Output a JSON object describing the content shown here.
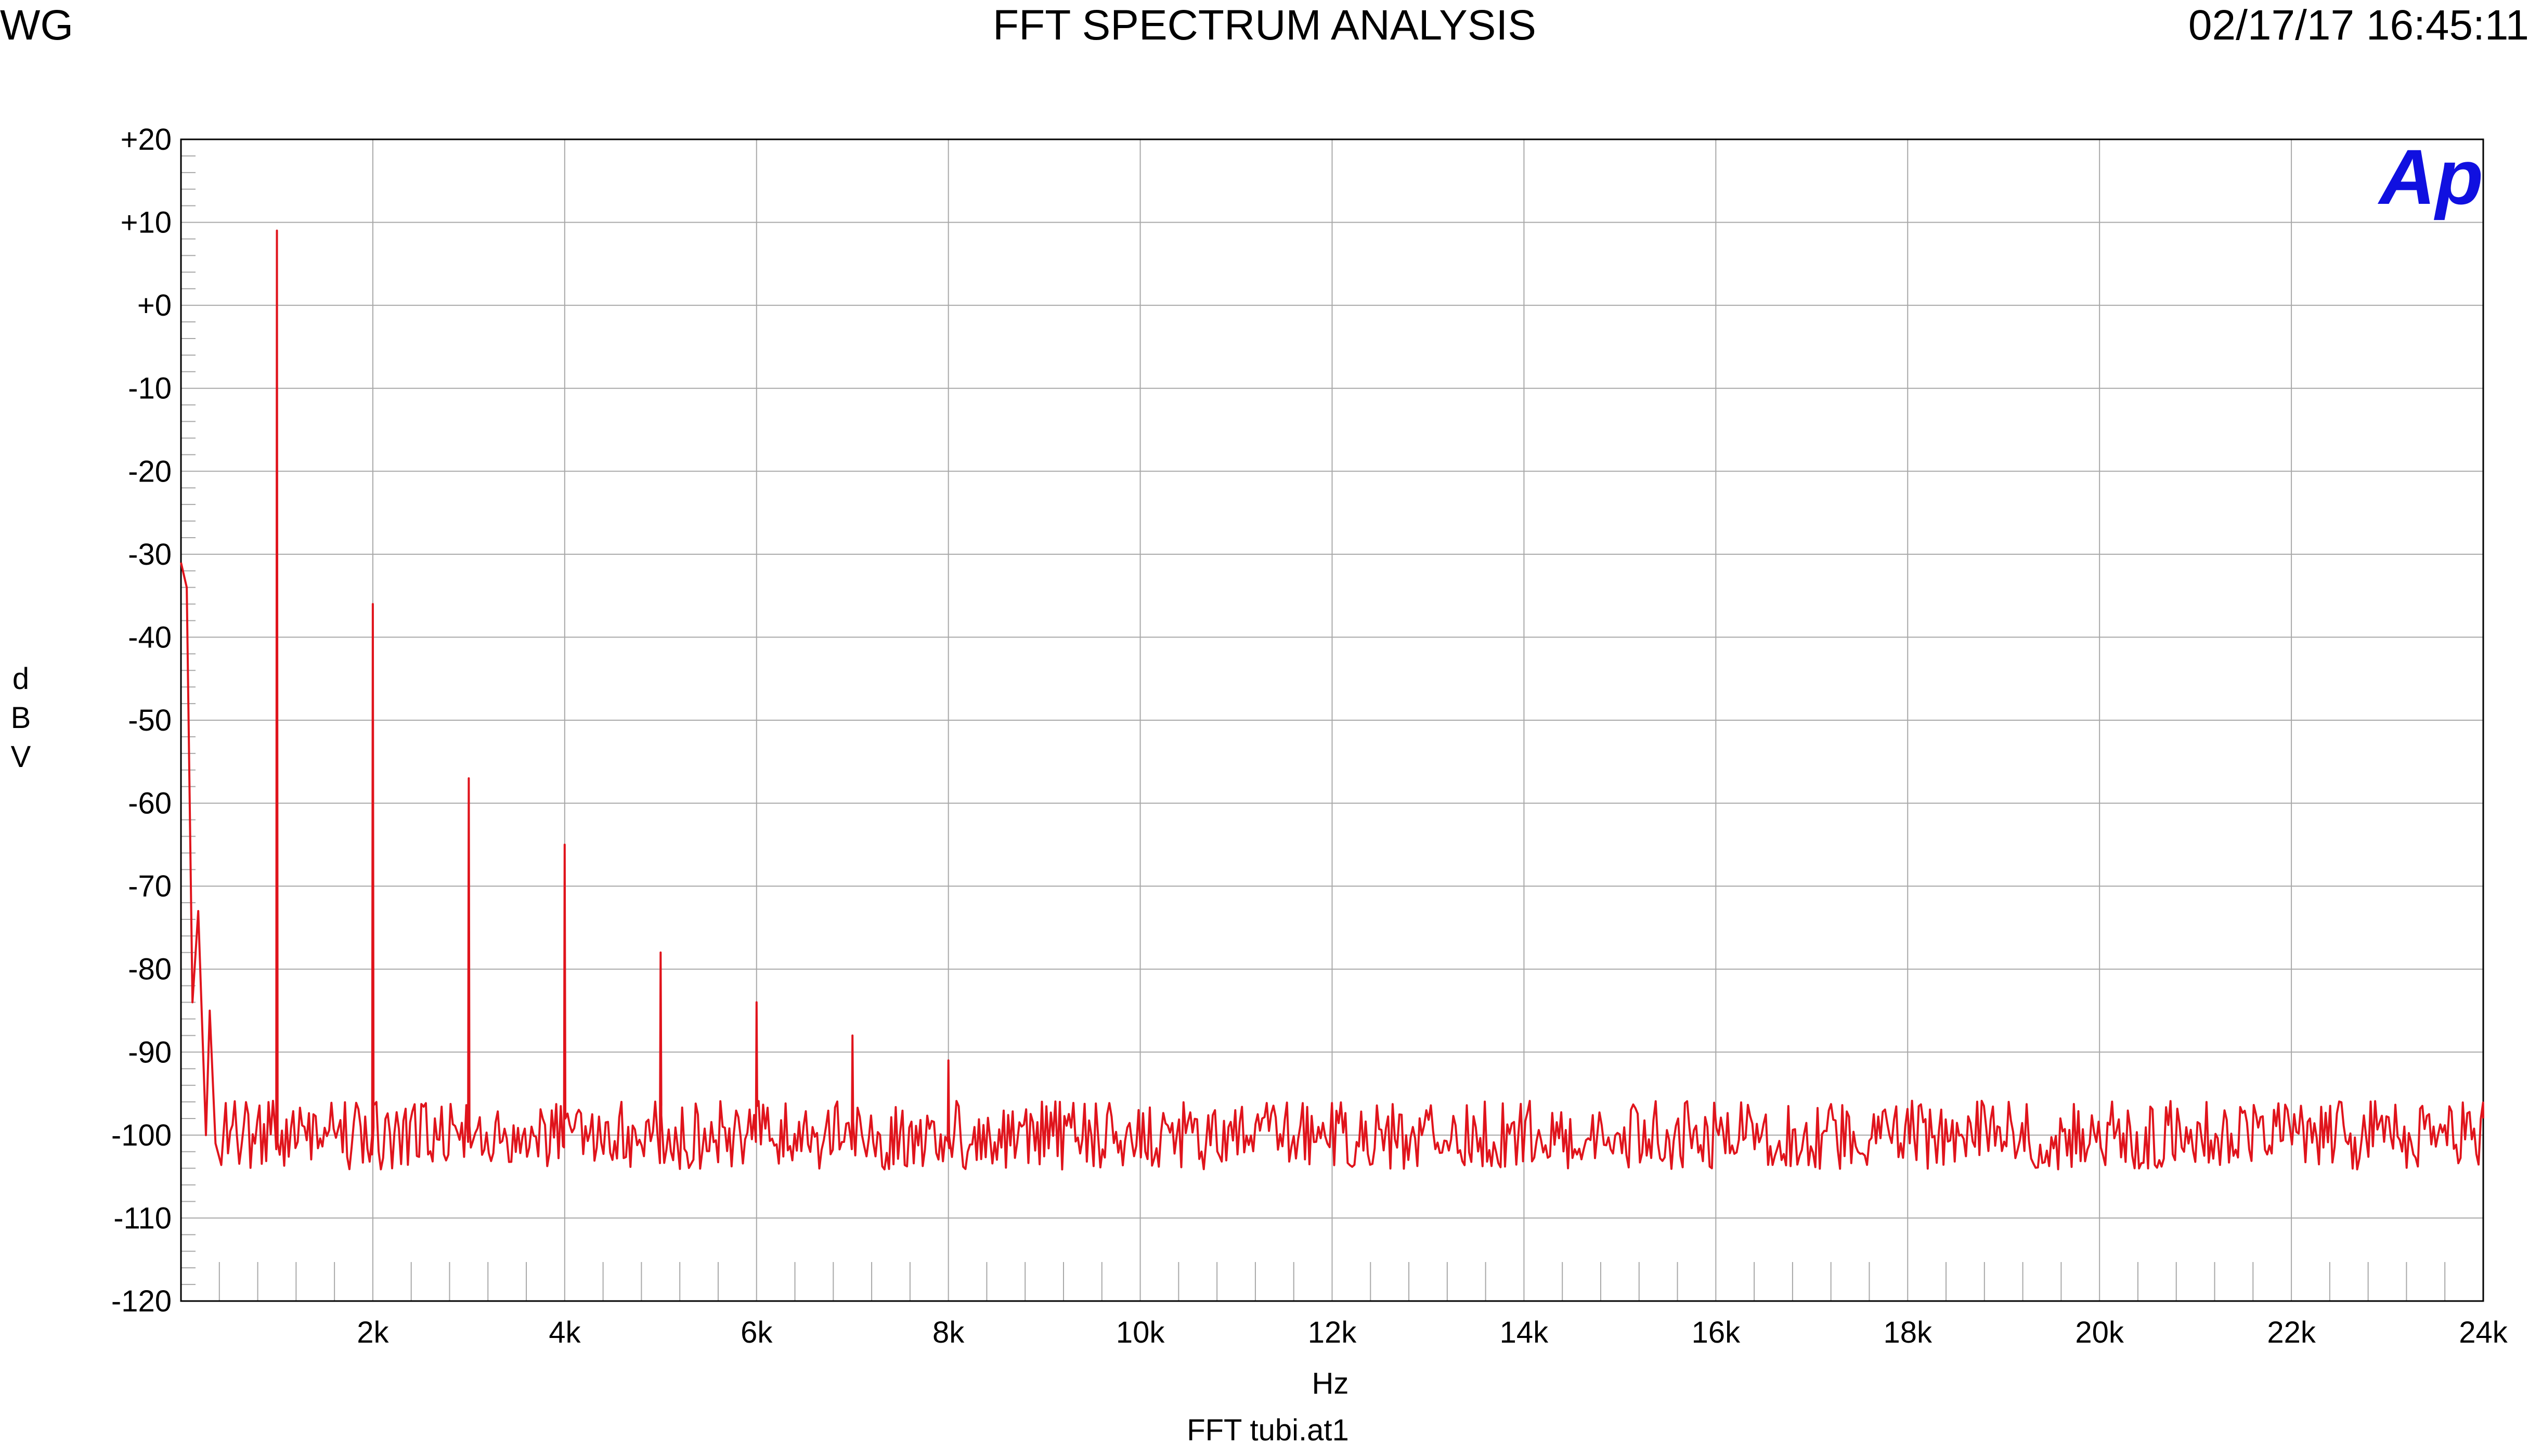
{
  "header": {
    "left": "WG",
    "title": "FFT SPECTRUM ANALYSIS",
    "datetime": "02/17/17 16:45:11"
  },
  "logo": {
    "text": "Ap",
    "color": "#1010e0"
  },
  "footer": {
    "filename": "FFT tubi.at1"
  },
  "chart_data": {
    "type": "line",
    "title": "FFT SPECTRUM ANALYSIS",
    "xlabel": "Hz",
    "ylabel": "dBV",
    "xlim": [
      0,
      24000
    ],
    "ylim": [
      -120,
      20
    ],
    "grid": true,
    "x_ticks": [
      {
        "value": 2000,
        "label": "2k"
      },
      {
        "value": 4000,
        "label": "4k"
      },
      {
        "value": 6000,
        "label": "6k"
      },
      {
        "value": 8000,
        "label": "8k"
      },
      {
        "value": 10000,
        "label": "10k"
      },
      {
        "value": 12000,
        "label": "12k"
      },
      {
        "value": 14000,
        "label": "14k"
      },
      {
        "value": 16000,
        "label": "16k"
      },
      {
        "value": 18000,
        "label": "18k"
      },
      {
        "value": 20000,
        "label": "20k"
      },
      {
        "value": 22000,
        "label": "22k"
      },
      {
        "value": 24000,
        "label": "24k"
      }
    ],
    "y_ticks": [
      {
        "value": 20,
        "label": "+20"
      },
      {
        "value": 10,
        "label": "+10"
      },
      {
        "value": 0,
        "label": "+0"
      },
      {
        "value": -10,
        "label": "-10"
      },
      {
        "value": -20,
        "label": "-20"
      },
      {
        "value": -30,
        "label": "-30"
      },
      {
        "value": -40,
        "label": "-40"
      },
      {
        "value": -50,
        "label": "-50"
      },
      {
        "value": -60,
        "label": "-60"
      },
      {
        "value": -70,
        "label": "-70"
      },
      {
        "value": -80,
        "label": "-80"
      },
      {
        "value": -90,
        "label": "-90"
      },
      {
        "value": -100,
        "label": "-100"
      },
      {
        "value": -110,
        "label": "-110"
      },
      {
        "value": -120,
        "label": "-120"
      }
    ],
    "series": [
      {
        "color": "#e0141c",
        "noise_floor": -100,
        "peaks": [
          {
            "x": 1000,
            "y": 9
          },
          {
            "x": 2000,
            "y": -36
          },
          {
            "x": 3000,
            "y": -57
          },
          {
            "x": 4000,
            "y": -65
          },
          {
            "x": 5000,
            "y": -78
          },
          {
            "x": 6000,
            "y": -84
          },
          {
            "x": 7000,
            "y": -88
          },
          {
            "x": 8000,
            "y": -91
          }
        ],
        "low_end": [
          {
            "x": 0,
            "y": -31
          },
          {
            "x": 60,
            "y": -34
          },
          {
            "x": 120,
            "y": -84
          },
          {
            "x": 180,
            "y": -73
          },
          {
            "x": 260,
            "y": -100
          },
          {
            "x": 300,
            "y": -85
          },
          {
            "x": 360,
            "y": -101
          }
        ]
      }
    ]
  }
}
